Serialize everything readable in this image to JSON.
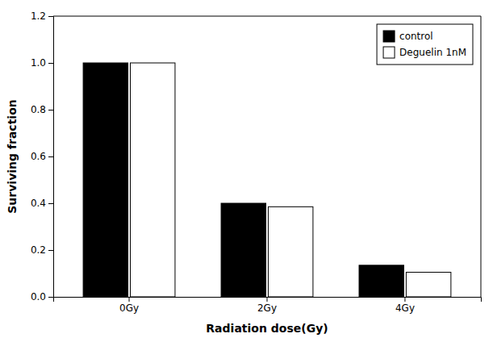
{
  "chart_data": {
    "type": "bar",
    "categories": [
      "0Gy",
      "2Gy",
      "4Gy"
    ],
    "series": [
      {
        "name": "control",
        "color": "#000000",
        "values": [
          1.0,
          0.4,
          0.135
        ]
      },
      {
        "name": "Deguelin 1nM",
        "color": "#ffffff",
        "values": [
          1.0,
          0.385,
          0.105
        ]
      }
    ],
    "xlabel": "Radiation dose(Gy)",
    "ylabel": "Surviving fraction",
    "ylim": [
      0,
      1.2
    ],
    "yticks": [
      {
        "value": 0,
        "label": "0.0"
      },
      0.2,
      0.4,
      0.6,
      0.8,
      {
        "value": 1.0,
        "label": "1.0"
      },
      1.2
    ],
    "grid": false,
    "legend": "upper right"
  }
}
